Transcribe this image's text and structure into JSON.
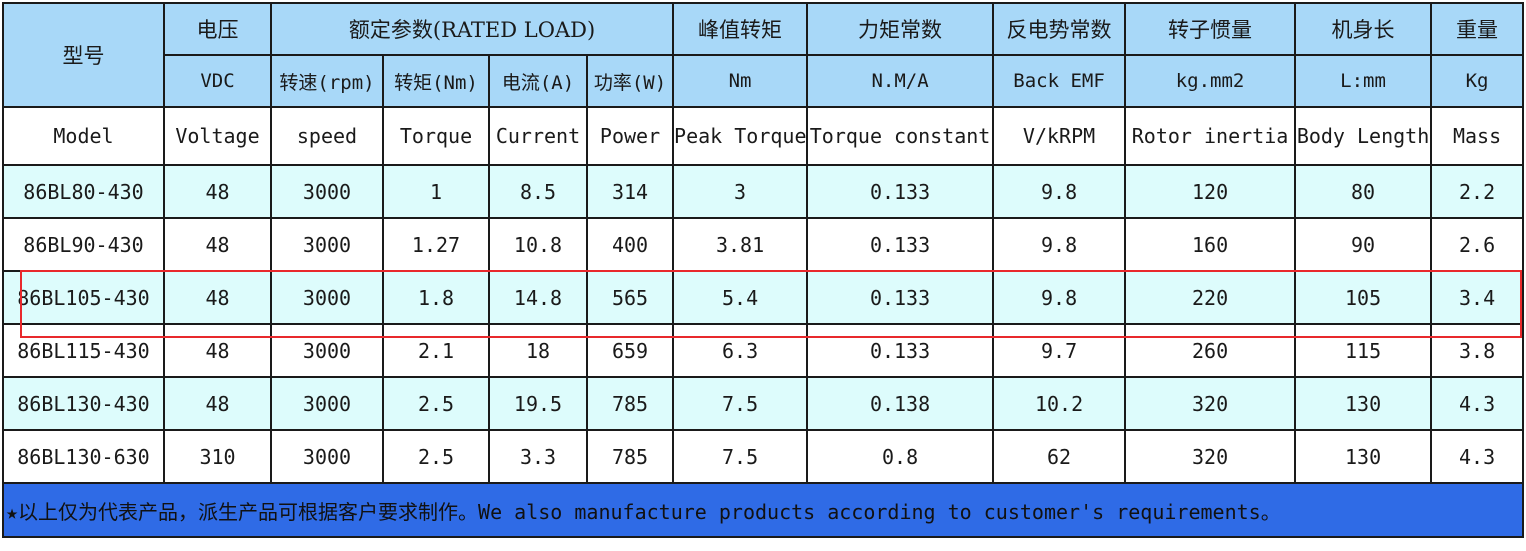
{
  "header": {
    "model_cn": "型号",
    "voltage_cn": "电压",
    "rated_cn": "额定参数(RATED LOAD)",
    "peak_cn": "峰值转矩",
    "kt_cn": "力矩常数",
    "emf_cn": "反电势常数",
    "inertia_cn": "转子惯量",
    "length_cn": "机身长",
    "weight_cn": "重量",
    "voltage_unit": "VDC",
    "speed_unit": "转速(rpm)",
    "torque_unit": "转矩(Nm)",
    "current_unit": "电流(A)",
    "power_unit": "功率(W)",
    "peak_unit": "Nm",
    "kt_unit": "N.M/A",
    "emf_unit": "Back EMF",
    "inertia_unit": "kg.mm2",
    "length_unit": "L:mm",
    "weight_unit": "Kg",
    "en": [
      "Model",
      "Voltage",
      "speed",
      "Torque",
      "Current",
      "Power",
      "Peak Torque",
      "Torque constant",
      "V/kRPM",
      "Rotor inertia",
      "Body Length",
      "Mass"
    ]
  },
  "rows": [
    [
      "86BL80-430",
      "48",
      "3000",
      "1",
      "8.5",
      "314",
      "3",
      "0.133",
      "9.8",
      "120",
      "80",
      "2.2"
    ],
    [
      "86BL90-430",
      "48",
      "3000",
      "1.27",
      "10.8",
      "400",
      "3.81",
      "0.133",
      "9.8",
      "160",
      "90",
      "2.6"
    ],
    [
      "86BL105-430",
      "48",
      "3000",
      "1.8",
      "14.8",
      "565",
      "5.4",
      "0.133",
      "9.8",
      "220",
      "105",
      "3.4"
    ],
    [
      "86BL115-430",
      "48",
      "3000",
      "2.1",
      "18",
      "659",
      "6.3",
      "0.133",
      "9.7",
      "260",
      "115",
      "3.8"
    ],
    [
      "86BL130-430",
      "48",
      "3000",
      "2.5",
      "19.5",
      "785",
      "7.5",
      "0.138",
      "10.2",
      "320",
      "130",
      "4.3"
    ],
    [
      "86BL130-630",
      "310",
      "3000",
      "2.5",
      "3.3",
      "785",
      "7.5",
      "0.8",
      "62",
      "320",
      "130",
      "4.3"
    ]
  ],
  "footer": "★以上仅为代表产品，派生产品可根据客户要求制作。We also manufacture products according to customer's requirements。",
  "colors": {
    "header_bg": "#a8d8f8",
    "row_tint": "#ddfcfc",
    "footer_bg": "#2f6be6",
    "highlight": "#e8292c"
  }
}
